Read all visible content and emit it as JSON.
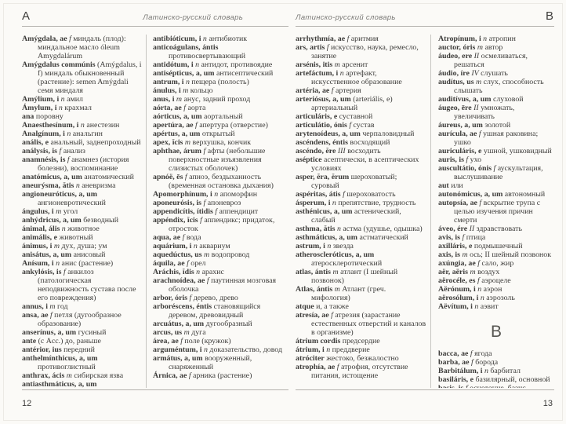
{
  "colors": {
    "page_background": "#fbfaf7",
    "text": "#3d3c3a",
    "rule": "#b3b1ad"
  },
  "left_page": {
    "corner_letter": "A",
    "running_title": "Латинско-русский словарь",
    "page_number": "12",
    "columns": [
      [
        {
          "h": "Amýgdala, ae",
          "g": "f",
          "b": "миндаль (плод): миндальное масло óleum Amygdalárum"
        },
        {
          "h": "Amýgdalus commúnis",
          "g": "",
          "b": "(Amýgdalus, i f) миндаль обыкновенный (растение): semen Amýgdali семя миндаля"
        },
        {
          "h": "Amýlium, i",
          "g": "n",
          "b": "амил"
        },
        {
          "h": "Ámylum, i",
          "g": "n",
          "b": "крахмал"
        },
        {
          "h": "ana",
          "g": "",
          "b": "поровну"
        },
        {
          "h": "Anaesthesínum, i",
          "g": "n",
          "b": "анестезин"
        },
        {
          "h": "Analgínum, i",
          "g": "n",
          "b": "анальгин"
        },
        {
          "h": "anális, e",
          "g": "",
          "b": "анальный, заднепроходный"
        },
        {
          "h": "análysis, is",
          "g": "f",
          "b": "анализ"
        },
        {
          "h": "anamnésis, is",
          "g": "f",
          "b": "анамнез (история болезни), воспоминание"
        },
        {
          "h": "anatómicus, a, um",
          "g": "",
          "b": "анатомический"
        },
        {
          "h": "aneurýsma, ătis",
          "g": "n",
          "b": "аневризма"
        },
        {
          "h": "angioneuróticus, a, um",
          "g": "",
          "b": "ангионевротический"
        },
        {
          "h": "ángulus, i",
          "g": "m",
          "b": "угол"
        },
        {
          "h": "anhýdricus, a, um",
          "g": "",
          "b": "безводный"
        },
        {
          "h": "ánimal, ális",
          "g": "n",
          "b": "животное"
        },
        {
          "h": "animális, e",
          "g": "",
          "b": "животный"
        },
        {
          "h": "ánimus, i",
          "g": "m",
          "b": "дух, душа; ум"
        },
        {
          "h": "anisátus, a, um",
          "g": "",
          "b": "анисовый"
        },
        {
          "h": "Anísum, i",
          "g": "n",
          "b": "анис (растение)"
        },
        {
          "h": "ankylósis, is",
          "g": "f",
          "b": "анкилоз (патологическая неподвижность сустава после его повреждения)"
        },
        {
          "h": "annus, i",
          "g": "m",
          "b": "год"
        },
        {
          "h": "ansa, ae",
          "g": "f",
          "b": "петля (дугообразное образование)"
        },
        {
          "h": "anserínus, a, um",
          "g": "",
          "b": "гусиный"
        },
        {
          "h": "ante",
          "g": "",
          "b": "(с Acc.) до, раньше"
        },
        {
          "h": "antérior, ius",
          "g": "",
          "b": "передний"
        },
        {
          "h": "anthelmínthicus, a, um",
          "g": "",
          "b": "противоглистный"
        },
        {
          "h": "anthrax, ácis",
          "g": "m",
          "b": "сибирская язва"
        },
        {
          "h": "antiasthmáticus, a, um",
          "g": "",
          "b": "противоастматический"
        }
      ],
      [
        {
          "h": "antibióticum, i",
          "g": "n",
          "b": "антибиотик"
        },
        {
          "h": "anticoágulans, ántis",
          "g": "",
          "b": "противосвертывающий"
        },
        {
          "h": "antidótum, i",
          "g": "n",
          "b": "антидот, противоядие"
        },
        {
          "h": "antisépticus, a, um",
          "g": "",
          "b": "антисептический"
        },
        {
          "h": "antrum, i",
          "g": "n",
          "b": "пещера (полость)"
        },
        {
          "h": "ánulus, i",
          "g": "m",
          "b": "кольцо"
        },
        {
          "h": "anus, i",
          "g": "m",
          "b": "анус, задний проход"
        },
        {
          "h": "aórta, ae",
          "g": "f",
          "b": "аорта"
        },
        {
          "h": "aórticus, a, um",
          "g": "",
          "b": "аортальный"
        },
        {
          "h": "apertúra, ae",
          "g": "f",
          "b": "апертура (отверстие)"
        },
        {
          "h": "apértus, a, um",
          "g": "",
          "b": "открытый"
        },
        {
          "h": "apex, ĭcis",
          "g": "m",
          "b": "верхушка, кончик"
        },
        {
          "h": "aphthae, árum",
          "g": "f",
          "b": "афты (небольшие поверхностные изъязвления слизистых оболочек)"
        },
        {
          "h": "apnóë, ēs",
          "g": "f",
          "b": "апноэ, бездыханность (временная остановка дыхания)"
        },
        {
          "h": "Apomorphínum, i",
          "g": "n",
          "b": "апоморфин"
        },
        {
          "h": "aponeurósis, is",
          "g": "f",
          "b": "апоневроз"
        },
        {
          "h": "appendicítis, ítidis",
          "g": "f",
          "b": "аппендицит"
        },
        {
          "h": "appéndix, ĭcis",
          "g": "f",
          "b": "аппендикс; придаток, отросток"
        },
        {
          "h": "aqua, ae",
          "g": "f",
          "b": "вода"
        },
        {
          "h": "aquárium, i",
          "g": "n",
          "b": "аквариум"
        },
        {
          "h": "aquedúctus, us",
          "g": "m",
          "b": "водопровод"
        },
        {
          "h": "áquila, ae",
          "g": "f",
          "b": "орел"
        },
        {
          "h": "Aráchis, ĭdis",
          "g": "n",
          "b": "арахис"
        },
        {
          "h": "arachnoídea, ae",
          "g": "f",
          "b": "паутинная мозговая оболочка"
        },
        {
          "h": "arbor, óris",
          "g": "f",
          "b": "дерево, древо"
        },
        {
          "h": "arboréscens, éntis",
          "g": "",
          "b": "становящийся деревом, древовидный"
        },
        {
          "h": "arcuátus, a, um",
          "g": "",
          "b": "дугообразный"
        },
        {
          "h": "arcus, us",
          "g": "m",
          "b": "дуга"
        },
        {
          "h": "área, ae",
          "g": "f",
          "b": "поле (кружок)"
        },
        {
          "h": "arguméntum, i",
          "g": "n",
          "b": "доказательство, довод"
        },
        {
          "h": "armátus, a, um",
          "g": "",
          "b": "вооруженный, снаряженный"
        },
        {
          "h": "Árnica, ae",
          "g": "f",
          "b": "арника (растение)"
        }
      ]
    ]
  },
  "right_page": {
    "corner_letter": "B",
    "running_title": "Латинско-русский словарь",
    "page_number": "13",
    "columns": [
      [
        {
          "h": "arrhythmía, ae",
          "g": "f",
          "b": "аритмия"
        },
        {
          "h": "ars, artis",
          "g": "f",
          "b": "искусство, наука, ремесло, занятие"
        },
        {
          "h": "arsénis, itis",
          "g": "m",
          "b": "арсенит"
        },
        {
          "h": "artefáctum, i",
          "g": "n",
          "b": "артефакт, искусственное образование"
        },
        {
          "h": "artéria, ae",
          "g": "f",
          "b": "артерия"
        },
        {
          "h": "arteriósus, a, um",
          "g": "",
          "b": "(arteriális, e) артериальный"
        },
        {
          "h": "articuláris, e",
          "g": "",
          "b": "суставной"
        },
        {
          "h": "articulátio, ónis",
          "g": "f",
          "b": "сустав"
        },
        {
          "h": "arytenoídeus, a, um",
          "g": "",
          "b": "черпаловидный"
        },
        {
          "h": "ascéndens, éntis",
          "g": "",
          "b": "восходящий"
        },
        {
          "h": "ascéndo, ĕre",
          "g": "III",
          "b": "восходить"
        },
        {
          "h": "aséptice",
          "g": "",
          "b": "асептически, в асептических условиях"
        },
        {
          "h": "asper, ĕra, ĕrum",
          "g": "",
          "b": "шероховатый; суровый"
        },
        {
          "h": "aspéritas, átis",
          "g": "f",
          "b": "шероховатость"
        },
        {
          "h": "ásperum, i",
          "g": "n",
          "b": "препятствие, трудность"
        },
        {
          "h": "asthénicus, a, um",
          "g": "",
          "b": "астенический, слабый"
        },
        {
          "h": "asthma, ătis",
          "g": "n",
          "b": "астма (удушье, одышка)"
        },
        {
          "h": "asthmáticus, a, um",
          "g": "",
          "b": "астматический"
        },
        {
          "h": "astrum, i",
          "g": "n",
          "b": "звезда"
        },
        {
          "h": "atheroscleróticus, a, um",
          "g": "",
          "b": "атеросклеротический"
        },
        {
          "h": "atlas, ántis",
          "g": "m",
          "b": "атлант (I шейный позвонок)"
        },
        {
          "h": "Atlas, ántis",
          "g": "m",
          "b": "Атлант (греч. мифология)"
        },
        {
          "h": "atque",
          "g": "",
          "b": "и, а также"
        },
        {
          "h": "atresía, ae",
          "g": "f",
          "b": "атрезия (зарастание естественных отверстий и каналов в организме)"
        },
        {
          "h": "átrium cordis",
          "g": "",
          "b": "предсердие"
        },
        {
          "h": "átrium, i",
          "g": "n",
          "b": "преддверие"
        },
        {
          "h": "atróciter",
          "g": "",
          "b": "жестоко, безжалостно"
        },
        {
          "h": "atrophía, ae",
          "g": "f",
          "b": "атрофия, отсутствие питания, истощение"
        }
      ],
      [
        {
          "h": "Atropínum, i",
          "g": "n",
          "b": "атропин"
        },
        {
          "h": "auctor, óris",
          "g": "m",
          "b": "автор"
        },
        {
          "h": "áudeo, ere",
          "g": "II",
          "b": "осмеливаться, решаться"
        },
        {
          "h": "áudio, íre",
          "g": "IV",
          "b": "слушать"
        },
        {
          "h": "audítus, us",
          "g": "m",
          "b": "слух, способность слышать"
        },
        {
          "h": "auditívus, a, um",
          "g": "",
          "b": "слуховой"
        },
        {
          "h": "áugeo, ēre",
          "g": "II",
          "b": "умножать, увеличивать"
        },
        {
          "h": "áureus, a, um",
          "g": "",
          "b": "золотой"
        },
        {
          "h": "aurícula, ae",
          "g": "f",
          "b": "ушная раковина; ушко"
        },
        {
          "h": "auriculáris, e",
          "g": "",
          "b": "ушной, ушковидный"
        },
        {
          "h": "auris, is",
          "g": "f",
          "b": "ухо"
        },
        {
          "h": "auscultátio, ónis",
          "g": "f",
          "b": "аускультация, выслушивание"
        },
        {
          "h": "aut",
          "g": "",
          "b": "или"
        },
        {
          "h": "autonómicus, a, um",
          "g": "",
          "b": "автономный"
        },
        {
          "h": "autopsía, ae",
          "g": "f",
          "b": "вскрытие трупа с целью изучения причин смерти"
        },
        {
          "h": "áveo, ére",
          "g": "II",
          "b": "здравствовать"
        },
        {
          "h": "avis, is",
          "g": "f",
          "b": "птица"
        },
        {
          "h": "axilláris, e",
          "g": "",
          "b": "подмышечный"
        },
        {
          "h": "axis, is",
          "g": "m",
          "b": "ось; II шейный позвонок"
        },
        {
          "h": "axúngia, ae",
          "g": "f",
          "b": "сало, жир"
        },
        {
          "h": "aër, aëris",
          "g": "m",
          "b": "воздух"
        },
        {
          "h": "aërocéle, es",
          "g": "f",
          "b": "аэроцеле"
        },
        {
          "h": "Aërónum, i",
          "g": "n",
          "b": "аэрон"
        },
        {
          "h": "aërosólum, i",
          "g": "n",
          "b": "аэрозоль"
        },
        {
          "h": "Aëvítum, i",
          "g": "n",
          "b": "аэвит"
        },
        {
          "section": "B"
        },
        {
          "h": "bacca, ae",
          "g": "f",
          "b": "ягода"
        },
        {
          "h": "barba, ae",
          "g": "f",
          "b": "борода"
        },
        {
          "h": "Barbitálum, i",
          "g": "n",
          "b": "барбитал"
        },
        {
          "h": "basiláris, e",
          "g": "",
          "b": "базилярный, основной"
        },
        {
          "h": "basis, is",
          "g": "f",
          "b": "основание, базис основное (средство в сложном рецепте)"
        },
        {
          "h": "beátus, a, um",
          "g": "",
          "b": "счастливый"
        }
      ]
    ]
  }
}
